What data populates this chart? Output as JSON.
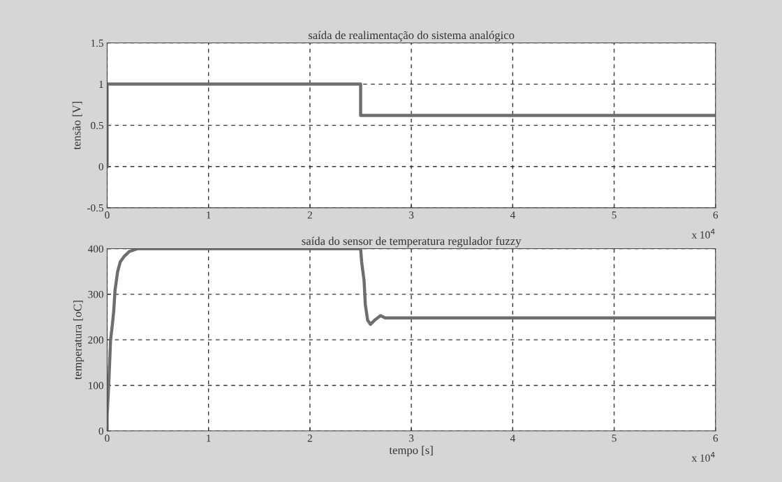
{
  "chart_data": [
    {
      "type": "line",
      "title": "saída de realimentação do sistema analógico",
      "ylabel": "tensão [V]",
      "x": [
        0,
        0,
        2.5,
        2.5,
        6
      ],
      "series": [
        {
          "color": "#6e6e6e",
          "values": [
            0,
            1,
            1,
            0.62,
            0.62
          ]
        }
      ],
      "xlim": [
        0,
        6
      ],
      "xticks": [
        0,
        1,
        2,
        3,
        4,
        5,
        6
      ],
      "ylim": [
        -0.5,
        1.5
      ],
      "yticks": [
        -0.5,
        0,
        0.5,
        1,
        1.5
      ],
      "grid": true,
      "line_style": "solid",
      "annotations": [
        "x 10$^{4}$"
      ]
    },
    {
      "type": "line",
      "title": "saída do sensor de temperatura regulador fuzzy",
      "xlabel": "tempo [s]",
      "ylabel": "temperatura [oC]",
      "x": [
        0,
        0,
        0.018,
        0.034,
        0.052,
        0.065,
        0.078,
        0.103,
        0.129,
        0.168,
        0.22,
        0.297,
        2.5,
        2.51,
        2.534,
        2.546,
        2.569,
        2.597,
        2.638,
        2.696,
        2.742,
        6
      ],
      "series": [
        {
          "color": "#6e6e6e",
          "values": [
            0,
            34,
            114,
            200,
            234,
            263,
            309,
            349,
            371,
            383,
            394,
            400,
            400,
            371,
            330,
            278,
            243,
            234,
            243,
            253,
            248,
            248
          ]
        }
      ],
      "xlim": [
        0,
        6
      ],
      "xticks": [
        0,
        1,
        2,
        3,
        4,
        5,
        6
      ],
      "ylim": [
        0,
        400
      ],
      "yticks": [
        0,
        100,
        200,
        300,
        400
      ],
      "grid": true,
      "line_style": "solid",
      "annotations": [
        "x 10$^{4}$"
      ]
    }
  ]
}
